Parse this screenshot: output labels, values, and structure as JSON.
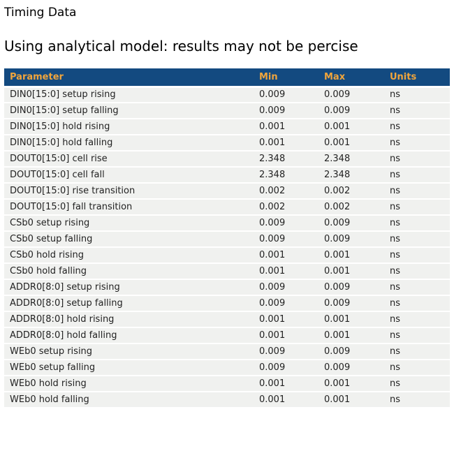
{
  "page": {
    "title": "Timing Data",
    "subtitle": "Using analytical model: results may not be percise"
  },
  "colors": {
    "header_bg": "#134A80",
    "header_text": "#F0A53C",
    "row_bg": "#F0F1EF",
    "row_text": "#222222",
    "page_bg": "#FFFFFF"
  },
  "table": {
    "columns": [
      "Parameter",
      "Min",
      "Max",
      "Units"
    ],
    "rows": [
      {
        "parameter": "DIN0[15:0] setup rising",
        "min": "0.009",
        "max": "0.009",
        "units": "ns"
      },
      {
        "parameter": "DIN0[15:0] setup falling",
        "min": "0.009",
        "max": "0.009",
        "units": "ns"
      },
      {
        "parameter": "DIN0[15:0] hold rising",
        "min": "0.001",
        "max": "0.001",
        "units": "ns"
      },
      {
        "parameter": "DIN0[15:0] hold falling",
        "min": "0.001",
        "max": "0.001",
        "units": "ns"
      },
      {
        "parameter": "DOUT0[15:0] cell rise",
        "min": "2.348",
        "max": "2.348",
        "units": "ns"
      },
      {
        "parameter": "DOUT0[15:0] cell fall",
        "min": "2.348",
        "max": "2.348",
        "units": "ns"
      },
      {
        "parameter": "DOUT0[15:0] rise transition",
        "min": "0.002",
        "max": "0.002",
        "units": "ns"
      },
      {
        "parameter": "DOUT0[15:0] fall transition",
        "min": "0.002",
        "max": "0.002",
        "units": "ns"
      },
      {
        "parameter": "CSb0 setup rising",
        "min": "0.009",
        "max": "0.009",
        "units": "ns"
      },
      {
        "parameter": "CSb0 setup falling",
        "min": "0.009",
        "max": "0.009",
        "units": "ns"
      },
      {
        "parameter": "CSb0 hold rising",
        "min": "0.001",
        "max": "0.001",
        "units": "ns"
      },
      {
        "parameter": "CSb0 hold falling",
        "min": "0.001",
        "max": "0.001",
        "units": "ns"
      },
      {
        "parameter": "ADDR0[8:0] setup rising",
        "min": "0.009",
        "max": "0.009",
        "units": "ns"
      },
      {
        "parameter": "ADDR0[8:0] setup falling",
        "min": "0.009",
        "max": "0.009",
        "units": "ns"
      },
      {
        "parameter": "ADDR0[8:0] hold rising",
        "min": "0.001",
        "max": "0.001",
        "units": "ns"
      },
      {
        "parameter": "ADDR0[8:0] hold falling",
        "min": "0.001",
        "max": "0.001",
        "units": "ns"
      },
      {
        "parameter": "WEb0 setup rising",
        "min": "0.009",
        "max": "0.009",
        "units": "ns"
      },
      {
        "parameter": "WEb0 setup falling",
        "min": "0.009",
        "max": "0.009",
        "units": "ns"
      },
      {
        "parameter": "WEb0 hold rising",
        "min": "0.001",
        "max": "0.001",
        "units": "ns"
      },
      {
        "parameter": "WEb0 hold falling",
        "min": "0.001",
        "max": "0.001",
        "units": "ns"
      }
    ]
  }
}
